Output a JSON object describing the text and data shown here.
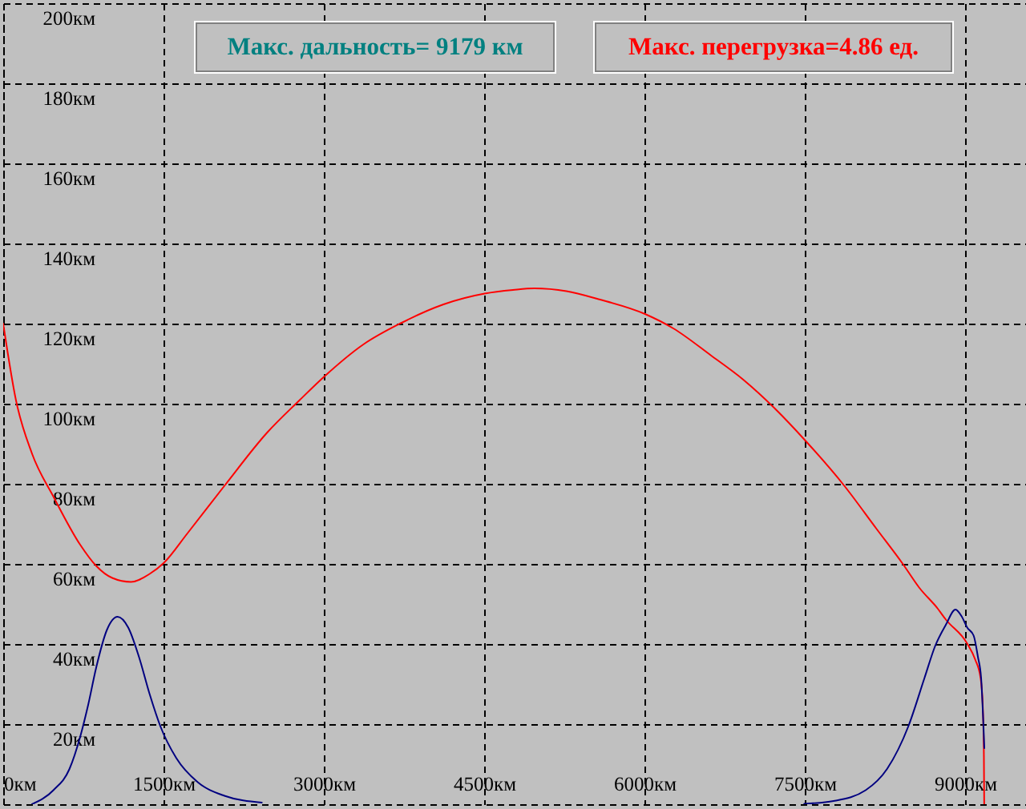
{
  "chart_data": {
    "type": "line",
    "annotations": [
      "Макс. дальность= 9179 км",
      "Макс. перегрузка=4.86 ед."
    ],
    "xlim": [
      0,
      9570
    ],
    "ylim": [
      0,
      200
    ],
    "xticks": [
      {
        "value": 0,
        "label": "0км"
      },
      {
        "value": 1500,
        "label": "1500км"
      },
      {
        "value": 3000,
        "label": "3000км"
      },
      {
        "value": 4500,
        "label": "4500км"
      },
      {
        "value": 6000,
        "label": "6000км"
      },
      {
        "value": 7500,
        "label": "7500км"
      },
      {
        "value": 9000,
        "label": "9000км"
      }
    ],
    "yticks": [
      {
        "value": 0,
        "label": null
      },
      {
        "value": 20,
        "label": "20км"
      },
      {
        "value": 40,
        "label": "40км"
      },
      {
        "value": 60,
        "label": "60км"
      },
      {
        "value": 80,
        "label": "80км"
      },
      {
        "value": 100,
        "label": "100км"
      },
      {
        "value": 120,
        "label": "120км"
      },
      {
        "value": 140,
        "label": "140км"
      },
      {
        "value": 160,
        "label": "160км"
      },
      {
        "value": 180,
        "label": "180км"
      },
      {
        "value": 200,
        "label": "200км"
      }
    ],
    "grid": true,
    "series": [
      {
        "color": "#ff0000",
        "x": [
          0,
          120,
          270,
          470,
          720,
          870,
          1020,
          1195,
          1370,
          1505,
          1720,
          2070,
          2470,
          2770,
          3005,
          3370,
          3720,
          4120,
          4505,
          4770,
          4970,
          5270,
          5570,
          6005,
          6270,
          6620,
          6920,
          7220,
          7505,
          7870,
          8170,
          8420,
          8570,
          8745,
          8820,
          9020,
          9095,
          9145,
          9165,
          9176,
          9179
        ],
        "values": [
          120,
          100.8,
          87.5,
          76.8,
          64.8,
          59.5,
          56.5,
          55.5,
          57.5,
          60.3,
          67.5,
          79.5,
          92.8,
          100.8,
          106.8,
          114.8,
          120.1,
          124.8,
          127.5,
          128.4,
          128.8,
          128.1,
          126.1,
          122.4,
          118.8,
          112.1,
          106.1,
          98.8,
          90.8,
          79.5,
          68.8,
          59.9,
          54.1,
          48.8,
          46.1,
          40.1,
          36.1,
          31.5,
          24.8,
          12,
          0
        ]
      },
      {
        "color": "#000080",
        "x": [
          270,
          470,
          620,
          720,
          795,
          870,
          970,
          1070,
          1170,
          1270,
          1370,
          1470,
          1620,
          1820,
          2070,
          2420,
          5000,
          7495,
          7770,
          8070,
          8270,
          8470,
          8620,
          8720,
          8820,
          8910,
          8970,
          9020,
          9080,
          9120,
          9150,
          9170,
          9180
        ],
        "values": [
          0,
          3.5,
          8.8,
          16.8,
          24.8,
          34.1,
          43.5,
          46.8,
          44.1,
          36.8,
          27.5,
          19.5,
          11.5,
          5.5,
          2.1,
          0.4,
          null,
          0.1,
          0.8,
          3.5,
          8.8,
          19.5,
          31.5,
          39.5,
          44.8,
          48.6,
          46.8,
          44.1,
          42.1,
          36.8,
          31.5,
          20.8,
          14
        ]
      }
    ]
  }
}
